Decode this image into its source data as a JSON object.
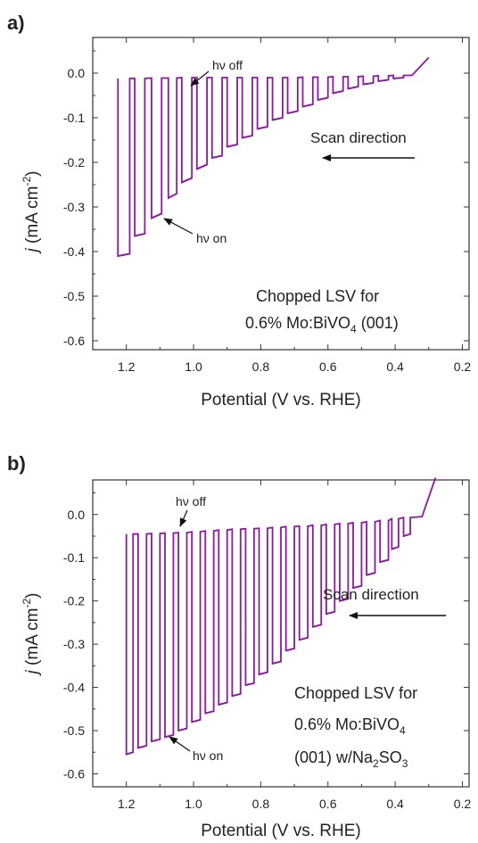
{
  "figure": {
    "panels": [
      {
        "panel_label": "a)",
        "xlabel": "Potential (V vs. RHE)",
        "ylabel": {
          "italic": "j",
          "unit_pre": " (mA cm",
          "unit_sup": "-2",
          "unit_post": ")"
        },
        "scan_direction": "Scan direction",
        "hv_off": "hν off",
        "hv_on": "hν on",
        "annotation": {
          "line1": "Chopped LSV for",
          "line2_pre": "0.6% Mo:BiVO",
          "line2_sub": "4",
          "line2_post": " (001)"
        }
      },
      {
        "panel_label": "b)",
        "xlabel": "Potential (V vs. RHE)",
        "ylabel": {
          "italic": "j",
          "unit_pre": " (mA cm",
          "unit_sup": "-2",
          "unit_post": ")"
        },
        "scan_direction": "Scan direction",
        "hv_off": "hν off",
        "hv_on": "hν on",
        "annotation": {
          "line1": "Chopped LSV for",
          "line2_pre": "0.6% Mo:BiVO",
          "line2_sub": "4",
          "line2_post": "",
          "line3_pre": "(001) w/Na",
          "line3_sub1": "2",
          "line3_mid": "SO",
          "line3_sub2": "3"
        }
      }
    ]
  },
  "chart_data": [
    {
      "type": "line",
      "panel": "a)",
      "title": "",
      "xlabel": "Potential (V vs. RHE)",
      "ylabel": "j (mA cm-2)",
      "xlim": [
        1.3,
        0.18
      ],
      "ylim": [
        -0.62,
        0.08
      ],
      "x_reversed": true,
      "xticks": [
        1.2,
        1.0,
        0.8,
        0.6,
        0.4,
        0.2
      ],
      "xtick_labels": [
        "1.2",
        "1.0",
        "0.8",
        "0.6",
        "0.4",
        "0.2"
      ],
      "yticks": [
        0.0,
        -0.1,
        -0.2,
        -0.3,
        -0.4,
        -0.5,
        -0.6
      ],
      "ytick_labels": [
        "0.0",
        "-0.1",
        "-0.2",
        "-0.3",
        "-0.4",
        "-0.5",
        "-0.6"
      ],
      "color": "#8B1A9E",
      "series": [
        {
          "dark_current": [
            [
              1.23,
              -0.01
            ],
            [
              0.35,
              -0.005
            ],
            [
              0.3,
              0.035
            ]
          ],
          "chop_cycles": [
            {
              "x_on": 1.225,
              "x_off": 1.19,
              "light_start": -0.41,
              "light_end": -0.405,
              "dark": -0.012
            },
            {
              "x_on": 1.175,
              "x_off": 1.145,
              "light_start": -0.365,
              "light_end": -0.36,
              "dark": -0.012
            },
            {
              "x_on": 1.125,
              "x_off": 1.095,
              "light_start": -0.325,
              "light_end": -0.315,
              "dark": -0.011
            },
            {
              "x_on": 1.075,
              "x_off": 1.05,
              "light_start": -0.28,
              "light_end": -0.27,
              "dark": -0.011
            },
            {
              "x_on": 1.035,
              "x_off": 1.005,
              "light_start": -0.245,
              "light_end": -0.235,
              "dark": -0.01
            },
            {
              "x_on": 0.99,
              "x_off": 0.96,
              "light_start": -0.215,
              "light_end": -0.205,
              "dark": -0.01
            },
            {
              "x_on": 0.945,
              "x_off": 0.915,
              "light_start": -0.19,
              "light_end": -0.185,
              "dark": -0.01
            },
            {
              "x_on": 0.9,
              "x_off": 0.87,
              "light_start": -0.165,
              "light_end": -0.16,
              "dark": -0.01
            },
            {
              "x_on": 0.855,
              "x_off": 0.825,
              "light_start": -0.145,
              "light_end": -0.14,
              "dark": -0.01
            },
            {
              "x_on": 0.81,
              "x_off": 0.78,
              "light_start": -0.125,
              "light_end": -0.12,
              "dark": -0.01
            },
            {
              "x_on": 0.765,
              "x_off": 0.735,
              "light_start": -0.105,
              "light_end": -0.1,
              "dark": -0.01
            },
            {
              "x_on": 0.72,
              "x_off": 0.69,
              "light_start": -0.09,
              "light_end": -0.085,
              "dark": -0.01
            },
            {
              "x_on": 0.675,
              "x_off": 0.645,
              "light_start": -0.075,
              "light_end": -0.07,
              "dark": -0.009
            },
            {
              "x_on": 0.63,
              "x_off": 0.6,
              "light_start": -0.06,
              "light_end": -0.055,
              "dark": -0.009
            },
            {
              "x_on": 0.585,
              "x_off": 0.555,
              "light_start": -0.045,
              "light_end": -0.04,
              "dark": -0.008
            },
            {
              "x_on": 0.54,
              "x_off": 0.51,
              "light_start": -0.035,
              "light_end": -0.03,
              "dark": -0.008
            },
            {
              "x_on": 0.495,
              "x_off": 0.465,
              "light_start": -0.025,
              "light_end": -0.022,
              "dark": -0.007
            },
            {
              "x_on": 0.45,
              "x_off": 0.42,
              "light_start": -0.018,
              "light_end": -0.015,
              "dark": -0.006
            },
            {
              "x_on": 0.405,
              "x_off": 0.375,
              "light_start": -0.012,
              "light_end": -0.01,
              "dark": -0.005
            }
          ]
        }
      ]
    },
    {
      "type": "line",
      "panel": "b)",
      "title": "",
      "xlabel": "Potential (V vs. RHE)",
      "ylabel": "j (mA cm-2)",
      "xlim": [
        1.3,
        0.18
      ],
      "ylim": [
        -0.63,
        0.08
      ],
      "x_reversed": true,
      "xticks": [
        1.2,
        1.0,
        0.8,
        0.6,
        0.4,
        0.2
      ],
      "xtick_labels": [
        "1.2",
        "1.0",
        "0.8",
        "0.6",
        "0.4",
        "0.2"
      ],
      "yticks": [
        0.0,
        -0.1,
        -0.2,
        -0.3,
        -0.4,
        -0.5,
        -0.6
      ],
      "ytick_labels": [
        "0.0",
        "-0.1",
        "-0.2",
        "-0.3",
        "-0.4",
        "-0.5",
        "-0.6"
      ],
      "color": "#8B1A9E",
      "series": [
        {
          "dark_current": [
            [
              1.2,
              -0.045
            ],
            [
              0.32,
              -0.005
            ],
            [
              0.28,
              0.085
            ]
          ],
          "chop_cycles": [
            {
              "x_on": 1.2,
              "x_off": 1.18,
              "light_start": -0.555,
              "light_end": -0.55,
              "dark": -0.045
            },
            {
              "x_on": 1.165,
              "x_off": 1.14,
              "light_start": -0.54,
              "light_end": -0.535,
              "dark": -0.045
            },
            {
              "x_on": 1.125,
              "x_off": 1.1,
              "light_start": -0.525,
              "light_end": -0.52,
              "dark": -0.044
            },
            {
              "x_on": 1.085,
              "x_off": 1.06,
              "light_start": -0.515,
              "light_end": -0.51,
              "dark": -0.043
            },
            {
              "x_on": 1.045,
              "x_off": 1.02,
              "light_start": -0.5,
              "light_end": -0.495,
              "dark": -0.042
            },
            {
              "x_on": 1.005,
              "x_off": 0.98,
              "light_start": -0.48,
              "light_end": -0.475,
              "dark": -0.04
            },
            {
              "x_on": 0.965,
              "x_off": 0.94,
              "light_start": -0.46,
              "light_end": -0.455,
              "dark": -0.038
            },
            {
              "x_on": 0.925,
              "x_off": 0.9,
              "light_start": -0.44,
              "light_end": -0.435,
              "dark": -0.036
            },
            {
              "x_on": 0.885,
              "x_off": 0.86,
              "light_start": -0.42,
              "light_end": -0.415,
              "dark": -0.034
            },
            {
              "x_on": 0.845,
              "x_off": 0.82,
              "light_start": -0.395,
              "light_end": -0.39,
              "dark": -0.033
            },
            {
              "x_on": 0.805,
              "x_off": 0.78,
              "light_start": -0.37,
              "light_end": -0.365,
              "dark": -0.032
            },
            {
              "x_on": 0.765,
              "x_off": 0.74,
              "light_start": -0.345,
              "light_end": -0.34,
              "dark": -0.03
            },
            {
              "x_on": 0.725,
              "x_off": 0.7,
              "light_start": -0.315,
              "light_end": -0.31,
              "dark": -0.028
            },
            {
              "x_on": 0.685,
              "x_off": 0.66,
              "light_start": -0.29,
              "light_end": -0.285,
              "dark": -0.027
            },
            {
              "x_on": 0.645,
              "x_off": 0.62,
              "light_start": -0.26,
              "light_end": -0.255,
              "dark": -0.025
            },
            {
              "x_on": 0.605,
              "x_off": 0.58,
              "light_start": -0.23,
              "light_end": -0.225,
              "dark": -0.023
            },
            {
              "x_on": 0.565,
              "x_off": 0.54,
              "light_start": -0.2,
              "light_end": -0.195,
              "dark": -0.021
            },
            {
              "x_on": 0.525,
              "x_off": 0.5,
              "light_start": -0.17,
              "light_end": -0.165,
              "dark": -0.019
            },
            {
              "x_on": 0.485,
              "x_off": 0.46,
              "light_start": -0.14,
              "light_end": -0.135,
              "dark": -0.017
            },
            {
              "x_on": 0.445,
              "x_off": 0.42,
              "light_start": -0.11,
              "light_end": -0.105,
              "dark": -0.014
            },
            {
              "x_on": 0.41,
              "x_off": 0.39,
              "light_start": -0.08,
              "light_end": -0.075,
              "dark": -0.01
            },
            {
              "x_on": 0.375,
              "x_off": 0.355,
              "light_start": -0.05,
              "light_end": -0.045,
              "dark": -0.007
            }
          ]
        }
      ]
    }
  ]
}
